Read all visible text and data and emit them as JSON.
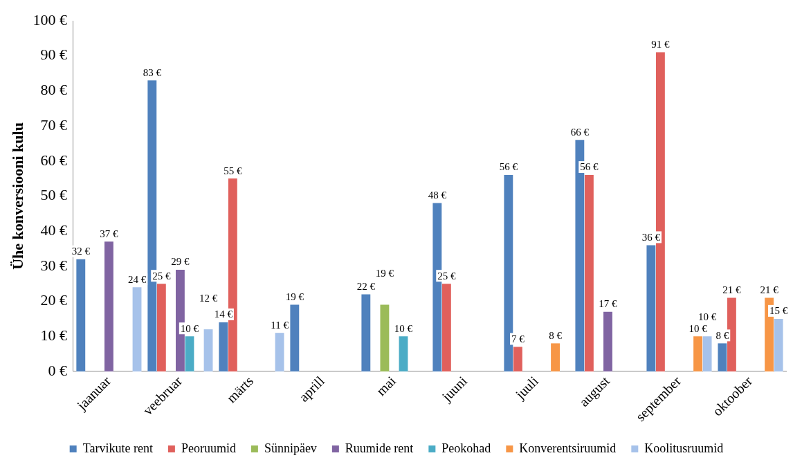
{
  "chart_data": {
    "type": "bar",
    "ylabel": "Ühe konversiooni kulu",
    "categories": [
      "jaanuar",
      "veebruar",
      "märts",
      "aprill",
      "mai",
      "juuni",
      "juuli",
      "august",
      "september",
      "oktoober"
    ],
    "series": [
      {
        "name": "Tarvikute rent",
        "color": "#4f81bd",
        "values": [
          32,
          83,
          14,
          19,
          22,
          48,
          56,
          66,
          36,
          8
        ],
        "value_labels": [
          "32 €",
          "83 €",
          "14 €",
          "19 €",
          "22 €",
          "48 €",
          "56 €",
          "66 €",
          "36 €",
          "8 €"
        ]
      },
      {
        "name": "Peoruumid",
        "color": "#e0605c",
        "values": [
          null,
          25,
          55,
          null,
          null,
          25,
          7,
          56,
          91,
          21
        ],
        "value_labels": [
          null,
          "25 €",
          "55 €",
          null,
          null,
          "25 €",
          "7 €",
          "56 €",
          "91 €",
          "21 €"
        ]
      },
      {
        "name": "Sünnipäev",
        "color": "#9bbb59",
        "values": [
          null,
          null,
          null,
          null,
          19,
          null,
          null,
          null,
          null,
          null
        ],
        "value_labels": [
          null,
          null,
          null,
          null,
          "19 €",
          null,
          null,
          null,
          null,
          null
        ]
      },
      {
        "name": "Ruumide rent",
        "color": "#8064a2",
        "values": [
          37,
          29,
          null,
          null,
          null,
          null,
          null,
          17,
          null,
          null
        ],
        "value_labels": [
          "37 €",
          "29 €",
          null,
          null,
          null,
          null,
          null,
          "17 €",
          null,
          null
        ]
      },
      {
        "name": "Peokohad",
        "color": "#4bacc6",
        "values": [
          null,
          10,
          null,
          null,
          10,
          null,
          null,
          null,
          null,
          null
        ],
        "value_labels": [
          null,
          "10 €",
          null,
          null,
          "10 €",
          null,
          null,
          null,
          null,
          null
        ]
      },
      {
        "name": "Konverentsiruumid",
        "color": "#f79646",
        "values": [
          null,
          null,
          null,
          null,
          null,
          null,
          8,
          null,
          10,
          21
        ],
        "value_labels": [
          null,
          null,
          null,
          null,
          null,
          null,
          "8 €",
          null,
          "10 €",
          "21 €"
        ]
      },
      {
        "name": "Koolitusruumid",
        "color": "#a6c2ea",
        "values": [
          24,
          12,
          11,
          null,
          null,
          null,
          null,
          null,
          10,
          15
        ],
        "value_labels": [
          "24 €",
          "12 €",
          "11 €",
          null,
          null,
          null,
          null,
          null,
          "10 €",
          "15 €"
        ]
      }
    ],
    "ylim": [
      0,
      100
    ],
    "yticks": [
      {
        "value": 0,
        "label": "0 €"
      },
      {
        "value": 10,
        "label": "10 €"
      },
      {
        "value": 20,
        "label": "20 €"
      },
      {
        "value": 30,
        "label": "30 €"
      },
      {
        "value": 40,
        "label": "40 €"
      },
      {
        "value": 50,
        "label": "50 €"
      },
      {
        "value": 60,
        "label": "60 €"
      },
      {
        "value": 70,
        "label": "70 €"
      },
      {
        "value": 80,
        "label": "80 €"
      },
      {
        "value": 90,
        "label": "90 €"
      },
      {
        "value": 100,
        "label": "100 €"
      }
    ],
    "grid": false,
    "legend": "bottom"
  }
}
